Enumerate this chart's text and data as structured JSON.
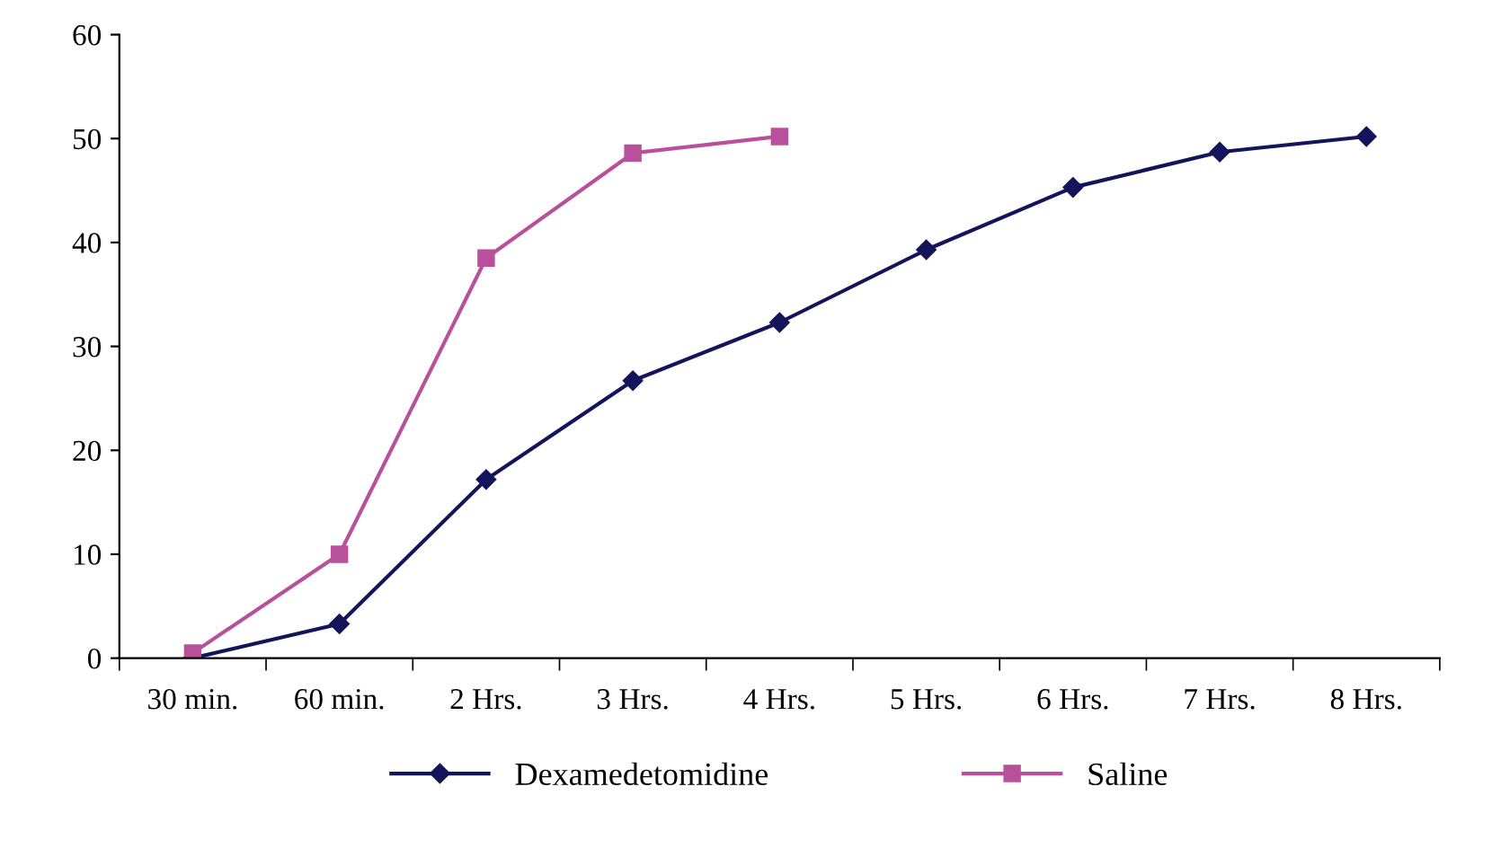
{
  "chart_data": {
    "type": "line",
    "categories": [
      "30 min.",
      "60 min.",
      "2 Hrs.",
      "3 Hrs.",
      "4 Hrs.",
      "5 Hrs.",
      "6 Hrs.",
      "7 Hrs.",
      "8 Hrs."
    ],
    "series": [
      {
        "name": "Dexamedetomidine",
        "color": "#14145a",
        "marker": "diamond",
        "values": [
          0,
          3.3,
          17.2,
          26.7,
          32.3,
          39.3,
          45.3,
          48.7,
          50.2
        ]
      },
      {
        "name": "Saline",
        "color": "#b8509c",
        "marker": "square",
        "values": [
          0.5,
          10,
          38.5,
          48.6,
          50.2,
          null,
          null,
          null,
          null
        ]
      }
    ],
    "ylim": [
      0,
      60
    ],
    "yticks": [
      0,
      10,
      20,
      30,
      40,
      50,
      60
    ],
    "grid": false,
    "legend": "bottom"
  }
}
